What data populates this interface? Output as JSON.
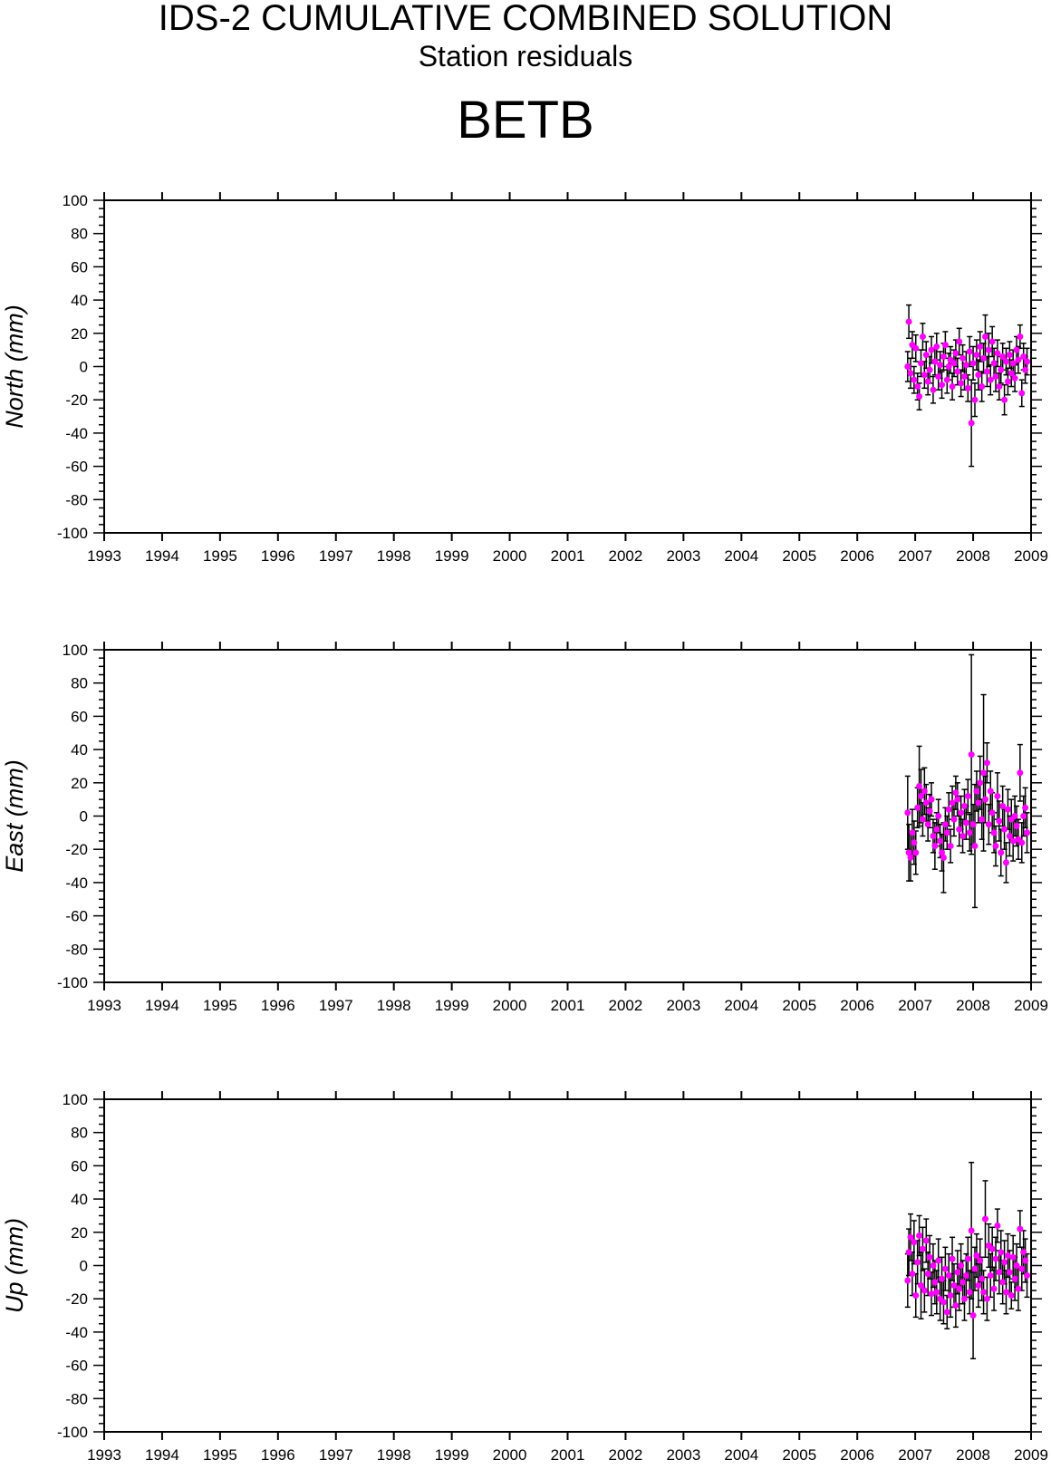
{
  "header": {
    "title": "IDS-2 CUMULATIVE COMBINED SOLUTION",
    "subtitle": "Station residuals",
    "station": "BETB"
  },
  "colors": {
    "marker": "#ff00ff",
    "errorbar": "#000000",
    "axis": "#000000"
  },
  "chart_data": [
    {
      "type": "scatter",
      "ylabel": "North (mm)",
      "xlim": [
        1993,
        2009
      ],
      "ylim": [
        -100,
        100
      ],
      "xticks": [
        "1993",
        "1994",
        "1995",
        "1996",
        "1997",
        "1998",
        "1999",
        "2000",
        "2001",
        "2002",
        "2003",
        "2004",
        "2005",
        "2006",
        "2007",
        "2008",
        "2009"
      ],
      "yticks": [
        "100",
        "80",
        "60",
        "40",
        "20",
        "0",
        "-20",
        "-40",
        "-60",
        "-80",
        "-100"
      ],
      "grid": false,
      "error_bars": true,
      "points": [
        {
          "x": 2006.87,
          "y": 0,
          "err": 9
        },
        {
          "x": 2006.89,
          "y": 27,
          "err": 10
        },
        {
          "x": 2006.92,
          "y": -4,
          "err": 9
        },
        {
          "x": 2006.95,
          "y": 13,
          "err": 8
        },
        {
          "x": 2006.98,
          "y": -8,
          "err": 8
        },
        {
          "x": 2007.01,
          "y": 11,
          "err": 8
        },
        {
          "x": 2007.04,
          "y": -12,
          "err": 8
        },
        {
          "x": 2007.07,
          "y": -18,
          "err": 8
        },
        {
          "x": 2007.1,
          "y": 2,
          "err": 8
        },
        {
          "x": 2007.13,
          "y": 18,
          "err": 8
        },
        {
          "x": 2007.16,
          "y": -5,
          "err": 8
        },
        {
          "x": 2007.19,
          "y": 7,
          "err": 8
        },
        {
          "x": 2007.22,
          "y": -9,
          "err": 8
        },
        {
          "x": 2007.25,
          "y": -2,
          "err": 8
        },
        {
          "x": 2007.28,
          "y": 10,
          "err": 8
        },
        {
          "x": 2007.31,
          "y": -14,
          "err": 8
        },
        {
          "x": 2007.34,
          "y": 3,
          "err": 8
        },
        {
          "x": 2007.37,
          "y": 12,
          "err": 8
        },
        {
          "x": 2007.4,
          "y": -6,
          "err": 8
        },
        {
          "x": 2007.43,
          "y": 1,
          "err": 8
        },
        {
          "x": 2007.46,
          "y": -11,
          "err": 8
        },
        {
          "x": 2007.49,
          "y": 6,
          "err": 8
        },
        {
          "x": 2007.52,
          "y": 13,
          "err": 8
        },
        {
          "x": 2007.55,
          "y": -8,
          "err": 8
        },
        {
          "x": 2007.58,
          "y": 0,
          "err": 8
        },
        {
          "x": 2007.61,
          "y": 4,
          "err": 8
        },
        {
          "x": 2007.64,
          "y": -12,
          "err": 8
        },
        {
          "x": 2007.67,
          "y": 2,
          "err": 8
        },
        {
          "x": 2007.7,
          "y": 8,
          "err": 8
        },
        {
          "x": 2007.73,
          "y": -3,
          "err": 8
        },
        {
          "x": 2007.76,
          "y": 15,
          "err": 8
        },
        {
          "x": 2007.79,
          "y": -10,
          "err": 8
        },
        {
          "x": 2007.82,
          "y": 5,
          "err": 8
        },
        {
          "x": 2007.85,
          "y": -6,
          "err": 8
        },
        {
          "x": 2007.88,
          "y": 1,
          "err": 8
        },
        {
          "x": 2007.91,
          "y": -13,
          "err": 8
        },
        {
          "x": 2007.94,
          "y": 9,
          "err": 9
        },
        {
          "x": 2007.97,
          "y": -34,
          "err": 26
        },
        {
          "x": 2008.0,
          "y": 2,
          "err": 10
        },
        {
          "x": 2008.03,
          "y": -20,
          "err": 10
        },
        {
          "x": 2008.06,
          "y": 7,
          "err": 9
        },
        {
          "x": 2008.09,
          "y": -5,
          "err": 9
        },
        {
          "x": 2008.12,
          "y": 12,
          "err": 9
        },
        {
          "x": 2008.15,
          "y": -12,
          "err": 9
        },
        {
          "x": 2008.18,
          "y": 5,
          "err": 9
        },
        {
          "x": 2008.21,
          "y": 18,
          "err": 13
        },
        {
          "x": 2008.24,
          "y": -3,
          "err": 9
        },
        {
          "x": 2008.27,
          "y": 10,
          "err": 10
        },
        {
          "x": 2008.3,
          "y": -8,
          "err": 9
        },
        {
          "x": 2008.33,
          "y": 15,
          "err": 9
        },
        {
          "x": 2008.36,
          "y": 2,
          "err": 9
        },
        {
          "x": 2008.39,
          "y": -6,
          "err": 9
        },
        {
          "x": 2008.42,
          "y": 8,
          "err": 8
        },
        {
          "x": 2008.45,
          "y": -12,
          "err": 8
        },
        {
          "x": 2008.48,
          "y": -2,
          "err": 8
        },
        {
          "x": 2008.51,
          "y": 6,
          "err": 8
        },
        {
          "x": 2008.54,
          "y": -20,
          "err": 9
        },
        {
          "x": 2008.57,
          "y": 3,
          "err": 8
        },
        {
          "x": 2008.6,
          "y": -9,
          "err": 8
        },
        {
          "x": 2008.63,
          "y": 7,
          "err": 8
        },
        {
          "x": 2008.66,
          "y": -4,
          "err": 8
        },
        {
          "x": 2008.69,
          "y": 2,
          "err": 8
        },
        {
          "x": 2008.72,
          "y": -7,
          "err": 8
        },
        {
          "x": 2008.75,
          "y": 10,
          "err": 8
        },
        {
          "x": 2008.78,
          "y": 4,
          "err": 8
        },
        {
          "x": 2008.81,
          "y": 18,
          "err": 7
        },
        {
          "x": 2008.84,
          "y": -16,
          "err": 8
        },
        {
          "x": 2008.87,
          "y": 6,
          "err": 8
        },
        {
          "x": 2008.9,
          "y": -2,
          "err": 8
        },
        {
          "x": 2008.93,
          "y": 3,
          "err": 8
        }
      ]
    },
    {
      "type": "scatter",
      "ylabel": "East (mm)",
      "xlim": [
        1993,
        2009
      ],
      "ylim": [
        -100,
        100
      ],
      "xticks": [
        "1993",
        "1994",
        "1995",
        "1996",
        "1997",
        "1998",
        "1999",
        "2000",
        "2001",
        "2002",
        "2003",
        "2004",
        "2005",
        "2006",
        "2007",
        "2008",
        "2009"
      ],
      "yticks": [
        "100",
        "80",
        "60",
        "40",
        "20",
        "0",
        "-20",
        "-40",
        "-60",
        "-80",
        "-100"
      ],
      "grid": false,
      "error_bars": true,
      "points": [
        {
          "x": 2006.87,
          "y": 2,
          "err": 22
        },
        {
          "x": 2006.89,
          "y": -22,
          "err": 17
        },
        {
          "x": 2006.92,
          "y": -25,
          "err": 14
        },
        {
          "x": 2006.95,
          "y": -10,
          "err": 14
        },
        {
          "x": 2006.98,
          "y": -16,
          "err": 13
        },
        {
          "x": 2007.01,
          "y": -22,
          "err": 13
        },
        {
          "x": 2007.04,
          "y": 5,
          "err": 12
        },
        {
          "x": 2007.07,
          "y": 18,
          "err": 24
        },
        {
          "x": 2007.1,
          "y": 12,
          "err": 16
        },
        {
          "x": 2007.13,
          "y": -2,
          "err": 10
        },
        {
          "x": 2007.16,
          "y": 15,
          "err": 14
        },
        {
          "x": 2007.19,
          "y": 8,
          "err": 11
        },
        {
          "x": 2007.22,
          "y": -5,
          "err": 10
        },
        {
          "x": 2007.25,
          "y": 3,
          "err": 10
        },
        {
          "x": 2007.28,
          "y": 10,
          "err": 10
        },
        {
          "x": 2007.31,
          "y": -12,
          "err": 10
        },
        {
          "x": 2007.34,
          "y": -18,
          "err": 14
        },
        {
          "x": 2007.37,
          "y": -8,
          "err": 10
        },
        {
          "x": 2007.4,
          "y": 0,
          "err": 10
        },
        {
          "x": 2007.43,
          "y": -15,
          "err": 10
        },
        {
          "x": 2007.46,
          "y": -22,
          "err": 11
        },
        {
          "x": 2007.49,
          "y": -25,
          "err": 21
        },
        {
          "x": 2007.52,
          "y": -5,
          "err": 10
        },
        {
          "x": 2007.55,
          "y": -10,
          "err": 10
        },
        {
          "x": 2007.58,
          "y": 4,
          "err": 10
        },
        {
          "x": 2007.61,
          "y": -18,
          "err": 10
        },
        {
          "x": 2007.64,
          "y": 8,
          "err": 10
        },
        {
          "x": 2007.67,
          "y": -2,
          "err": 10
        },
        {
          "x": 2007.7,
          "y": 14,
          "err": 10
        },
        {
          "x": 2007.73,
          "y": 10,
          "err": 10
        },
        {
          "x": 2007.76,
          "y": -8,
          "err": 10
        },
        {
          "x": 2007.79,
          "y": 2,
          "err": 10
        },
        {
          "x": 2007.82,
          "y": -12,
          "err": 10
        },
        {
          "x": 2007.85,
          "y": 6,
          "err": 10
        },
        {
          "x": 2007.88,
          "y": -4,
          "err": 10
        },
        {
          "x": 2007.91,
          "y": 12,
          "err": 10
        },
        {
          "x": 2007.94,
          "y": -10,
          "err": 11
        },
        {
          "x": 2007.97,
          "y": 37,
          "err": 60
        },
        {
          "x": 2008.0,
          "y": -5,
          "err": 12
        },
        {
          "x": 2008.03,
          "y": -18,
          "err": 37
        },
        {
          "x": 2008.06,
          "y": 15,
          "err": 12
        },
        {
          "x": 2008.09,
          "y": 8,
          "err": 12
        },
        {
          "x": 2008.12,
          "y": 20,
          "err": 16
        },
        {
          "x": 2008.15,
          "y": -2,
          "err": 12
        },
        {
          "x": 2008.18,
          "y": 26,
          "err": 47
        },
        {
          "x": 2008.21,
          "y": 10,
          "err": 14
        },
        {
          "x": 2008.24,
          "y": 32,
          "err": 12
        },
        {
          "x": 2008.27,
          "y": -5,
          "err": 12
        },
        {
          "x": 2008.3,
          "y": 15,
          "err": 12
        },
        {
          "x": 2008.33,
          "y": 2,
          "err": 12
        },
        {
          "x": 2008.36,
          "y": -10,
          "err": 12
        },
        {
          "x": 2008.39,
          "y": -18,
          "err": 12
        },
        {
          "x": 2008.42,
          "y": 12,
          "err": 14
        },
        {
          "x": 2008.45,
          "y": -3,
          "err": 12
        },
        {
          "x": 2008.48,
          "y": -22,
          "err": 14
        },
        {
          "x": 2008.51,
          "y": 6,
          "err": 12
        },
        {
          "x": 2008.54,
          "y": -8,
          "err": 12
        },
        {
          "x": 2008.57,
          "y": -28,
          "err": 12
        },
        {
          "x": 2008.6,
          "y": 4,
          "err": 12
        },
        {
          "x": 2008.63,
          "y": -12,
          "err": 12
        },
        {
          "x": 2008.66,
          "y": -2,
          "err": 12
        },
        {
          "x": 2008.69,
          "y": -15,
          "err": 12
        },
        {
          "x": 2008.72,
          "y": 0,
          "err": 12
        },
        {
          "x": 2008.75,
          "y": -6,
          "err": 12
        },
        {
          "x": 2008.78,
          "y": -14,
          "err": 12
        },
        {
          "x": 2008.81,
          "y": 26,
          "err": 17
        },
        {
          "x": 2008.84,
          "y": -16,
          "err": 12
        },
        {
          "x": 2008.87,
          "y": 0,
          "err": 12
        },
        {
          "x": 2008.9,
          "y": 5,
          "err": 12
        },
        {
          "x": 2008.93,
          "y": -10,
          "err": 12
        }
      ]
    },
    {
      "type": "scatter",
      "ylabel": "Up (mm)",
      "xlim": [
        1993,
        2009
      ],
      "ylim": [
        -100,
        100
      ],
      "xticks": [
        "1993",
        "1994",
        "1995",
        "1996",
        "1997",
        "1998",
        "1999",
        "2000",
        "2001",
        "2002",
        "2003",
        "2004",
        "2005",
        "2006",
        "2007",
        "2008",
        "2009"
      ],
      "yticks": [
        "100",
        "80",
        "60",
        "40",
        "20",
        "0",
        "-20",
        "-40",
        "-60",
        "-80",
        "-100"
      ],
      "grid": false,
      "error_bars": true,
      "points": [
        {
          "x": 2006.87,
          "y": -9,
          "err": 16
        },
        {
          "x": 2006.89,
          "y": 8,
          "err": 14
        },
        {
          "x": 2006.92,
          "y": 17,
          "err": 14
        },
        {
          "x": 2006.95,
          "y": -5,
          "err": 13
        },
        {
          "x": 2006.98,
          "y": 14,
          "err": 13
        },
        {
          "x": 2007.01,
          "y": -18,
          "err": 13
        },
        {
          "x": 2007.04,
          "y": 2,
          "err": 13
        },
        {
          "x": 2007.07,
          "y": 18,
          "err": 12
        },
        {
          "x": 2007.1,
          "y": -12,
          "err": 20
        },
        {
          "x": 2007.13,
          "y": 10,
          "err": 13
        },
        {
          "x": 2007.16,
          "y": -15,
          "err": 13
        },
        {
          "x": 2007.19,
          "y": 15,
          "err": 13
        },
        {
          "x": 2007.22,
          "y": -5,
          "err": 13
        },
        {
          "x": 2007.25,
          "y": 5,
          "err": 13
        },
        {
          "x": 2007.28,
          "y": -17,
          "err": 13
        },
        {
          "x": 2007.31,
          "y": 0,
          "err": 13
        },
        {
          "x": 2007.34,
          "y": -10,
          "err": 13
        },
        {
          "x": 2007.37,
          "y": -16,
          "err": 13
        },
        {
          "x": 2007.4,
          "y": 3,
          "err": 13
        },
        {
          "x": 2007.43,
          "y": -20,
          "err": 13
        },
        {
          "x": 2007.46,
          "y": -8,
          "err": 13
        },
        {
          "x": 2007.49,
          "y": -22,
          "err": 13
        },
        {
          "x": 2007.52,
          "y": -2,
          "err": 13
        },
        {
          "x": 2007.55,
          "y": -28,
          "err": 10
        },
        {
          "x": 2007.58,
          "y": -6,
          "err": 13
        },
        {
          "x": 2007.61,
          "y": -18,
          "err": 13
        },
        {
          "x": 2007.64,
          "y": 4,
          "err": 13
        },
        {
          "x": 2007.67,
          "y": -12,
          "err": 13
        },
        {
          "x": 2007.7,
          "y": -24,
          "err": 13
        },
        {
          "x": 2007.73,
          "y": -4,
          "err": 13
        },
        {
          "x": 2007.76,
          "y": -14,
          "err": 13
        },
        {
          "x": 2007.79,
          "y": 0,
          "err": 13
        },
        {
          "x": 2007.82,
          "y": -10,
          "err": 13
        },
        {
          "x": 2007.85,
          "y": -20,
          "err": 13
        },
        {
          "x": 2007.88,
          "y": -6,
          "err": 13
        },
        {
          "x": 2007.91,
          "y": 4,
          "err": 13
        },
        {
          "x": 2007.94,
          "y": -16,
          "err": 13
        },
        {
          "x": 2007.97,
          "y": 21,
          "err": 41
        },
        {
          "x": 2008.0,
          "y": -30,
          "err": 26
        },
        {
          "x": 2008.03,
          "y": -2,
          "err": 13
        },
        {
          "x": 2008.06,
          "y": 6,
          "err": 13
        },
        {
          "x": 2008.09,
          "y": -12,
          "err": 13
        },
        {
          "x": 2008.12,
          "y": 3,
          "err": 13
        },
        {
          "x": 2008.15,
          "y": -8,
          "err": 13
        },
        {
          "x": 2008.18,
          "y": -16,
          "err": 13
        },
        {
          "x": 2008.21,
          "y": 28,
          "err": 23
        },
        {
          "x": 2008.24,
          "y": -20,
          "err": 13
        },
        {
          "x": 2008.27,
          "y": 12,
          "err": 13
        },
        {
          "x": 2008.3,
          "y": -6,
          "err": 13
        },
        {
          "x": 2008.33,
          "y": 10,
          "err": 13
        },
        {
          "x": 2008.36,
          "y": -14,
          "err": 13
        },
        {
          "x": 2008.39,
          "y": 4,
          "err": 13
        },
        {
          "x": 2008.42,
          "y": 24,
          "err": 10
        },
        {
          "x": 2008.45,
          "y": -4,
          "err": 13
        },
        {
          "x": 2008.48,
          "y": 8,
          "err": 13
        },
        {
          "x": 2008.51,
          "y": -10,
          "err": 13
        },
        {
          "x": 2008.54,
          "y": 2,
          "err": 13
        },
        {
          "x": 2008.57,
          "y": -16,
          "err": 13
        },
        {
          "x": 2008.6,
          "y": 6,
          "err": 13
        },
        {
          "x": 2008.63,
          "y": -4,
          "err": 13
        },
        {
          "x": 2008.66,
          "y": -18,
          "err": 8
        },
        {
          "x": 2008.69,
          "y": 5,
          "err": 13
        },
        {
          "x": 2008.72,
          "y": -8,
          "err": 13
        },
        {
          "x": 2008.75,
          "y": 0,
          "err": 13
        },
        {
          "x": 2008.78,
          "y": -14,
          "err": 13
        },
        {
          "x": 2008.81,
          "y": 22,
          "err": 11
        },
        {
          "x": 2008.84,
          "y": -2,
          "err": 13
        },
        {
          "x": 2008.87,
          "y": 8,
          "err": 13
        },
        {
          "x": 2008.9,
          "y": 3,
          "err": 13
        },
        {
          "x": 2008.93,
          "y": -6,
          "err": 13
        }
      ]
    }
  ]
}
